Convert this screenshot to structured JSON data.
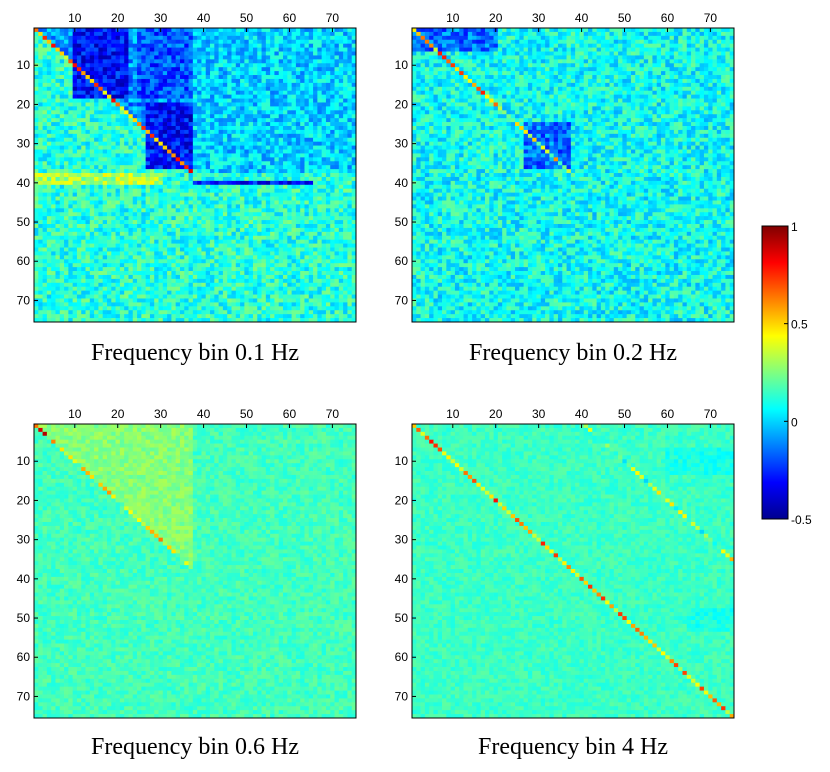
{
  "figure": {
    "colorbar": {
      "min": -0.5,
      "max": 1,
      "ticks": [
        {
          "value": 1,
          "label": "1"
        },
        {
          "value": 0.5,
          "label": "0.5"
        },
        {
          "value": 0,
          "label": "0"
        },
        {
          "value": -0.5,
          "label": "-0.5"
        }
      ],
      "colormap": "jet"
    }
  },
  "chart_data": [
    {
      "type": "heatmap",
      "title": "Frequency bin 0.1 Hz",
      "matrix_size": 75,
      "xticks": [
        "10",
        "20",
        "30",
        "40",
        "50",
        "60",
        "70"
      ],
      "yticks": [
        "10",
        "20",
        "30",
        "40",
        "50",
        "60",
        "70"
      ],
      "zlim": [
        -0.5,
        1
      ],
      "background_mean": 0.12,
      "noise_amplitude": 0.14,
      "diagonal": [
        {
          "from": 1,
          "to": 37,
          "value": 0.6
        }
      ],
      "regions": [
        {
          "rows": [
            1,
            37
          ],
          "cols": [
            1,
            37
          ],
          "part": "upper",
          "value": -0.1
        },
        {
          "rows": [
            1,
            18
          ],
          "cols": [
            10,
            22
          ],
          "value": -0.3
        },
        {
          "rows": [
            1,
            18
          ],
          "cols": [
            25,
            37
          ],
          "value": -0.2
        },
        {
          "rows": [
            20,
            36
          ],
          "cols": [
            27,
            37
          ],
          "value": -0.3
        },
        {
          "rows": [
            1,
            37
          ],
          "cols": [
            38,
            75
          ],
          "value": 0.0
        },
        {
          "rows": [
            38,
            40
          ],
          "cols": [
            1,
            30
          ],
          "value": 0.32
        },
        {
          "rows": [
            40,
            40
          ],
          "cols": [
            38,
            65
          ],
          "value": -0.3
        }
      ]
    },
    {
      "type": "heatmap",
      "title": "Frequency bin 0.2 Hz",
      "matrix_size": 75,
      "xticks": [
        "10",
        "20",
        "30",
        "40",
        "50",
        "60",
        "70"
      ],
      "yticks": [
        "10",
        "20",
        "30",
        "40",
        "50",
        "60",
        "70"
      ],
      "zlim": [
        -0.5,
        1
      ],
      "background_mean": 0.08,
      "noise_amplitude": 0.14,
      "diagonal": [
        {
          "from": 1,
          "to": 20,
          "value": 0.55
        },
        {
          "from": 21,
          "to": 37,
          "value": 0.35
        }
      ],
      "regions": [
        {
          "rows": [
            1,
            6
          ],
          "cols": [
            1,
            20
          ],
          "value": -0.15
        },
        {
          "rows": [
            25,
            36
          ],
          "cols": [
            27,
            37
          ],
          "value": -0.15
        }
      ]
    },
    {
      "type": "heatmap",
      "title": "Frequency bin 0.6 Hz",
      "matrix_size": 75,
      "xticks": [
        "10",
        "20",
        "30",
        "40",
        "50",
        "60",
        "70"
      ],
      "yticks": [
        "10",
        "20",
        "30",
        "40",
        "50",
        "60",
        "70"
      ],
      "zlim": [
        -0.5,
        1
      ],
      "background_mean": 0.16,
      "noise_amplitude": 0.06,
      "diagonal": [
        {
          "from": 1,
          "to": 3,
          "value": 0.85
        },
        {
          "from": 4,
          "to": 37,
          "value": 0.4
        }
      ],
      "regions": [
        {
          "rows": [
            1,
            37
          ],
          "cols": [
            1,
            37
          ],
          "part": "upper",
          "value": 0.26
        }
      ]
    },
    {
      "type": "heatmap",
      "title": "Frequency bin 4 Hz",
      "matrix_size": 75,
      "xticks": [
        "10",
        "20",
        "30",
        "40",
        "50",
        "60",
        "70"
      ],
      "yticks": [
        "10",
        "20",
        "30",
        "40",
        "50",
        "60",
        "70"
      ],
      "zlim": [
        -0.5,
        1
      ],
      "background_mean": 0.15,
      "noise_amplitude": 0.05,
      "diagonal": [
        {
          "from": 1,
          "to": 75,
          "value": 0.55
        }
      ],
      "offdiagonal": [
        {
          "offset": 40,
          "from": 1,
          "to": 35,
          "value": 0.3
        }
      ],
      "regions": [
        {
          "rows": [
            7,
            13
          ],
          "cols": [
            60,
            75
          ],
          "value": 0.1
        },
        {
          "rows": [
            48,
            53
          ],
          "cols": [
            65,
            75
          ],
          "value": 0.1
        }
      ]
    }
  ]
}
